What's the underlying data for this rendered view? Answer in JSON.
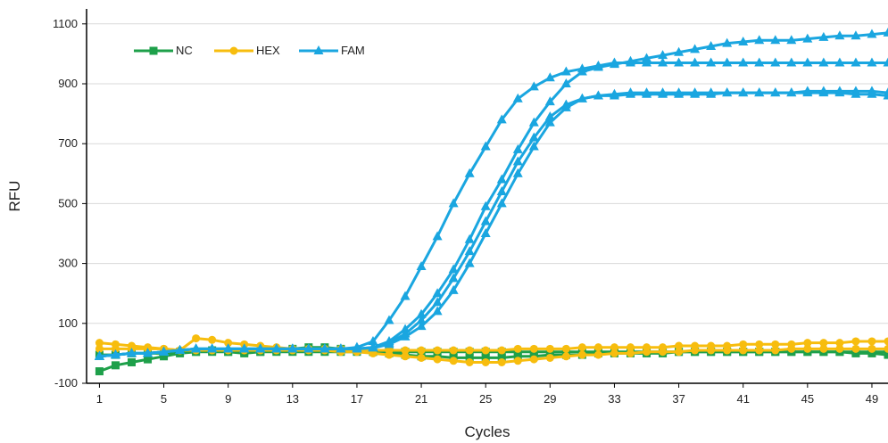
{
  "chart_data": {
    "type": "line",
    "title": "",
    "xlabel": "Cycles",
    "ylabel": "RFU",
    "xlim": [
      0.2,
      50
    ],
    "ylim": [
      -100,
      1150
    ],
    "x_ticks": [
      1,
      5,
      9,
      13,
      17,
      21,
      25,
      29,
      33,
      37,
      41,
      45,
      49
    ],
    "y_ticks": [
      -100,
      100,
      300,
      500,
      700,
      900,
      1100
    ],
    "grid": "horizontal",
    "legend": {
      "placement": "top-left",
      "entries": [
        "NC",
        "HEX",
        "FAM"
      ]
    },
    "colors": {
      "NC": "#1ea04a",
      "HEX": "#f7bd0e",
      "FAM": "#1aa6e0",
      "axis": "#000000",
      "grid": "#d9d9d9"
    },
    "x": [
      1,
      2,
      3,
      4,
      5,
      6,
      7,
      8,
      9,
      10,
      11,
      12,
      13,
      14,
      15,
      16,
      17,
      18,
      19,
      20,
      21,
      22,
      23,
      24,
      25,
      26,
      27,
      28,
      29,
      30,
      31,
      32,
      33,
      34,
      35,
      36,
      37,
      38,
      39,
      40,
      41,
      42,
      43,
      44,
      45,
      46,
      47,
      48,
      49,
      50
    ],
    "series": [
      {
        "name": "NC",
        "marker": "square",
        "values": [
          -60,
          -40,
          -30,
          -20,
          -10,
          0,
          5,
          10,
          5,
          0,
          5,
          10,
          15,
          20,
          20,
          15,
          10,
          5,
          0,
          -5,
          -10,
          -10,
          -15,
          -15,
          -15,
          -15,
          -10,
          -10,
          -5,
          -5,
          -5,
          0,
          0,
          0,
          0,
          0,
          5,
          5,
          5,
          5,
          5,
          5,
          5,
          5,
          5,
          5,
          5,
          0,
          0,
          -5
        ]
      },
      {
        "name": "NC",
        "marker": "square",
        "values": [
          -5,
          -5,
          0,
          0,
          0,
          5,
          5,
          5,
          5,
          5,
          5,
          5,
          5,
          5,
          5,
          5,
          5,
          5,
          5,
          5,
          5,
          5,
          5,
          5,
          5,
          5,
          5,
          5,
          5,
          5,
          5,
          5,
          5,
          5,
          5,
          5,
          5,
          5,
          5,
          5,
          5,
          5,
          5,
          5,
          5,
          5,
          5,
          5,
          5,
          5
        ]
      },
      {
        "name": "HEX",
        "marker": "circle",
        "values": [
          35,
          30,
          25,
          20,
          15,
          10,
          50,
          45,
          35,
          30,
          25,
          20,
          15,
          15,
          15,
          15,
          10,
          10,
          10,
          10,
          10,
          10,
          10,
          10,
          10,
          10,
          15,
          15,
          15,
          15,
          20,
          20,
          20,
          20,
          20,
          20,
          25,
          25,
          25,
          25,
          30,
          30,
          30,
          30,
          35,
          35,
          35,
          40,
          40,
          40
        ]
      },
      {
        "name": "HEX",
        "marker": "circle",
        "values": [
          15,
          15,
          15,
          15,
          15,
          10,
          10,
          10,
          10,
          10,
          10,
          10,
          10,
          10,
          10,
          5,
          5,
          0,
          -5,
          -10,
          -15,
          -20,
          -25,
          -30,
          -30,
          -30,
          -25,
          -20,
          -15,
          -10,
          -5,
          -5,
          0,
          0,
          5,
          5,
          5,
          10,
          10,
          10,
          10,
          10,
          10,
          15,
          15,
          15,
          15,
          15,
          15,
          15
        ]
      },
      {
        "name": "FAM",
        "marker": "triangle",
        "values": [
          -10,
          -5,
          0,
          0,
          5,
          10,
          15,
          15,
          15,
          15,
          15,
          15,
          15,
          15,
          15,
          15,
          20,
          40,
          110,
          190,
          290,
          390,
          500,
          600,
          690,
          780,
          850,
          890,
          920,
          940,
          950,
          960,
          970,
          970,
          970,
          970,
          970,
          970,
          970,
          970,
          970,
          970,
          970,
          970,
          970,
          970,
          970,
          970,
          970,
          970
        ]
      },
      {
        "name": "FAM",
        "marker": "triangle",
        "values": [
          -10,
          -5,
          0,
          0,
          5,
          10,
          15,
          15,
          15,
          15,
          15,
          15,
          15,
          15,
          15,
          15,
          15,
          20,
          40,
          80,
          130,
          200,
          280,
          380,
          490,
          580,
          680,
          770,
          840,
          900,
          940,
          955,
          965,
          975,
          985,
          995,
          1005,
          1015,
          1025,
          1035,
          1040,
          1045,
          1045,
          1045,
          1050,
          1055,
          1060,
          1060,
          1065,
          1070
        ]
      },
      {
        "name": "FAM",
        "marker": "triangle",
        "values": [
          -10,
          -5,
          0,
          0,
          5,
          10,
          15,
          15,
          15,
          15,
          15,
          15,
          15,
          15,
          15,
          15,
          15,
          20,
          35,
          65,
          110,
          170,
          250,
          340,
          440,
          540,
          640,
          720,
          790,
          830,
          850,
          860,
          860,
          865,
          865,
          865,
          865,
          865,
          865,
          870,
          870,
          870,
          870,
          870,
          875,
          875,
          875,
          875,
          875,
          870
        ]
      },
      {
        "name": "FAM",
        "marker": "triangle",
        "values": [
          -10,
          -5,
          0,
          0,
          5,
          10,
          15,
          15,
          15,
          15,
          15,
          15,
          15,
          15,
          15,
          15,
          15,
          18,
          30,
          55,
          90,
          140,
          210,
          300,
          400,
          500,
          600,
          690,
          770,
          820,
          850,
          860,
          865,
          870,
          870,
          870,
          870,
          870,
          870,
          870,
          870,
          870,
          870,
          870,
          870,
          870,
          870,
          865,
          865,
          860
        ]
      }
    ]
  }
}
